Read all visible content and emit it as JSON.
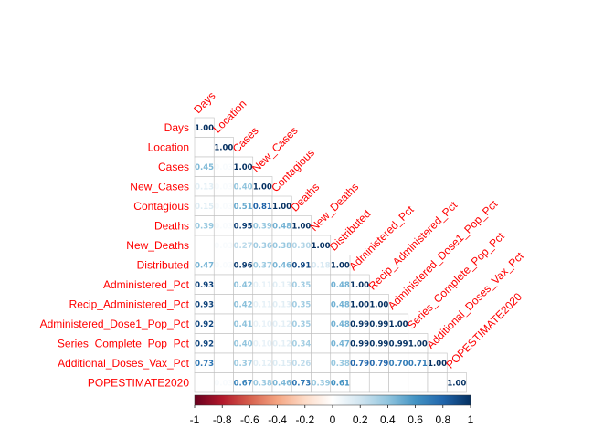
{
  "chart_data": {
    "type": "heatmap",
    "title": "",
    "variables": [
      "Days",
      "Location",
      "Cases",
      "New_Cases",
      "Contagious",
      "Deaths",
      "New_Deaths",
      "Distributed",
      "Administered_Pct",
      "Recip_Administered_Pct",
      "Administered_Dose1_Pop_Pct",
      "Series_Complete_Pop_Pct",
      "Additional_Doses_Vax_Pct",
      "POPESTIMATE2020"
    ],
    "matrix_lower": [
      [
        1.0
      ],
      [
        null,
        1.0
      ],
      [
        0.45,
        0.03,
        1.0
      ],
      [
        0.13,
        0.03,
        0.4,
        1.0
      ],
      [
        0.15,
        0.03,
        0.51,
        0.81,
        1.0
      ],
      [
        0.39,
        0.03,
        0.95,
        0.39,
        0.48,
        1.0
      ],
      [
        null,
        0.03,
        0.27,
        0.36,
        0.38,
        0.3,
        1.0
      ],
      [
        0.47,
        0.03,
        0.96,
        0.37,
        0.46,
        0.91,
        0.18,
        1.0
      ],
      [
        0.93,
        null,
        0.42,
        0.11,
        0.13,
        0.35,
        null,
        0.48,
        1.0
      ],
      [
        0.93,
        null,
        0.42,
        0.11,
        0.13,
        0.35,
        null,
        0.48,
        1.0,
        1.0
      ],
      [
        0.92,
        null,
        0.41,
        0.1,
        0.12,
        0.35,
        null,
        0.48,
        0.99,
        0.99,
        1.0
      ],
      [
        0.92,
        null,
        0.4,
        0.1,
        0.12,
        0.34,
        null,
        0.47,
        0.99,
        0.99,
        0.99,
        1.0
      ],
      [
        0.73,
        null,
        0.37,
        0.12,
        0.15,
        0.26,
        null,
        0.38,
        0.79,
        0.79,
        0.7,
        0.71,
        1.0
      ],
      [
        null,
        0.03,
        0.67,
        0.38,
        0.46,
        0.73,
        0.39,
        0.61,
        null,
        null,
        null,
        null,
        null,
        1.0
      ]
    ],
    "value_labels_lower": [
      [
        "1.00"
      ],
      [
        "",
        "1.00"
      ],
      [
        "0.45",
        "0.03",
        "1.00"
      ],
      [
        "0.13",
        "0.03",
        "0.40",
        "1.00"
      ],
      [
        "0.15",
        "0.03",
        "0.51",
        "0.81",
        "1.00"
      ],
      [
        "0.39",
        "0.03",
        "0.95",
        "0.39",
        "0.48",
        "1.00"
      ],
      [
        "",
        "0.03",
        "0.27",
        "0.36",
        "0.38",
        "0.30",
        "1.00"
      ],
      [
        "0.47",
        "0.03",
        "0.96",
        "0.37",
        "0.46",
        "0.91",
        "0.18",
        "1.00"
      ],
      [
        "0.93",
        "",
        "0.42",
        "0.11",
        "0.13",
        "0.35",
        "",
        "0.48",
        "1.00"
      ],
      [
        "0.93",
        "",
        "0.42",
        "0.11",
        "0.13",
        "0.35",
        "",
        "0.48",
        "1.00",
        "1.00"
      ],
      [
        "0.92",
        "",
        "0.41",
        "0.10",
        "0.12",
        "0.35",
        "",
        "0.48",
        "0.99",
        "0.99",
        "1.00"
      ],
      [
        "0.92",
        "",
        "0.40",
        "0.10",
        "0.12",
        "0.34",
        "",
        "0.47",
        "0.99",
        "0.99",
        "0.99",
        "1.00"
      ],
      [
        "0.73",
        "",
        "0.37",
        "0.12",
        "0.15",
        "0.26",
        "",
        "0.38",
        "0.79",
        "0.79",
        "0.70",
        "0.71",
        "1.00"
      ],
      [
        "",
        "0.03",
        "0.67",
        "0.38",
        "0.46",
        "0.73",
        "0.39",
        "0.61",
        "",
        "",
        "",
        "",
        "",
        "1.00"
      ]
    ],
    "colorbar": {
      "range": [
        -1,
        1
      ],
      "tick_labels": [
        "-1",
        "-0.8",
        "-0.6",
        "-0.4",
        "-0.2",
        "0",
        "0.2",
        "0.4",
        "0.6",
        "0.8",
        "1"
      ],
      "colors": [
        "#67001F",
        "#B2182B",
        "#D6604D",
        "#F4A582",
        "#FDDBC7",
        "#FFFFFF",
        "#D1E5F0",
        "#92C5DE",
        "#4393C3",
        "#2166AC",
        "#053061"
      ]
    },
    "label_color": "#FF0000",
    "grid_color": "#BEBEBE"
  }
}
